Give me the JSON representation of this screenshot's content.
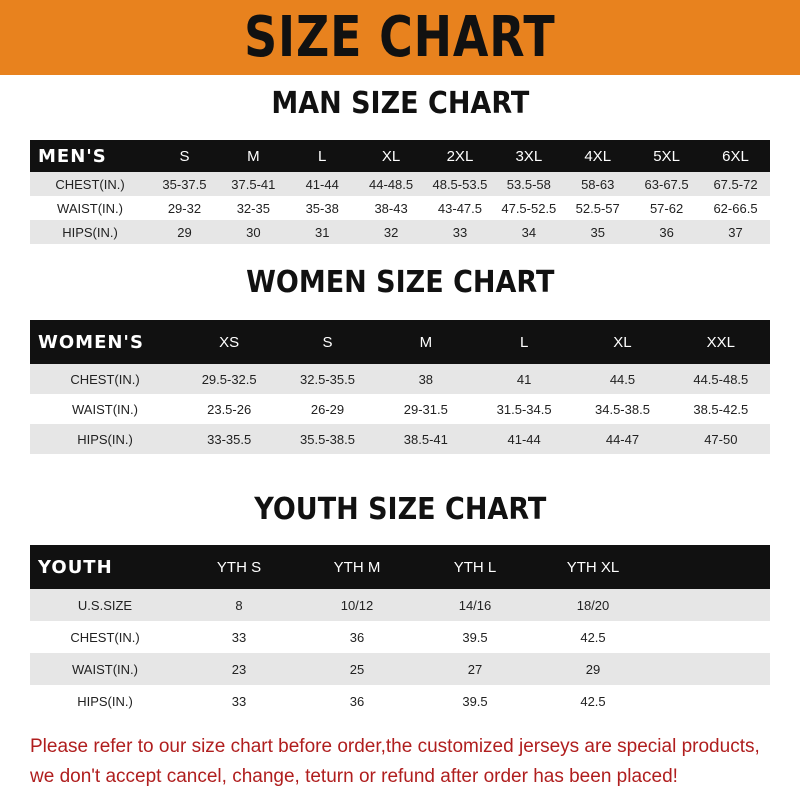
{
  "banner": "SIZE CHART",
  "men": {
    "title": "MAN SIZE CHART",
    "head": "MEN'S",
    "sizes": [
      "S",
      "M",
      "L",
      "XL",
      "2XL",
      "3XL",
      "4XL",
      "5XL",
      "6XL"
    ],
    "rows": [
      {
        "label": "CHEST(IN.)",
        "values": [
          "35-37.5",
          "37.5-41",
          "41-44",
          "44-48.5",
          "48.5-53.5",
          "53.5-58",
          "58-63",
          "63-67.5",
          "67.5-72"
        ]
      },
      {
        "label": "WAIST(IN.)",
        "values": [
          "29-32",
          "32-35",
          "35-38",
          "38-43",
          "43-47.5",
          "47.5-52.5",
          "52.5-57",
          "57-62",
          "62-66.5"
        ]
      },
      {
        "label": "HIPS(IN.)",
        "values": [
          "29",
          "30",
          "31",
          "32",
          "33",
          "34",
          "35",
          "36",
          "37"
        ]
      }
    ]
  },
  "women": {
    "title": "WOMEN SIZE CHART",
    "head": "WOMEN'S",
    "sizes": [
      "XS",
      "S",
      "M",
      "L",
      "XL",
      "XXL"
    ],
    "rows": [
      {
        "label": "CHEST(IN.)",
        "values": [
          "29.5-32.5",
          "32.5-35.5",
          "38",
          "41",
          "44.5",
          "44.5-48.5"
        ]
      },
      {
        "label": "WAIST(IN.)",
        "values": [
          "23.5-26",
          "26-29",
          "29-31.5",
          "31.5-34.5",
          "34.5-38.5",
          "38.5-42.5"
        ]
      },
      {
        "label": "HIPS(IN.)",
        "values": [
          "33-35.5",
          "35.5-38.5",
          "38.5-41",
          "41-44",
          "44-47",
          "47-50"
        ]
      }
    ]
  },
  "youth": {
    "title": "YOUTH SIZE CHART",
    "head": "YOUTH",
    "sizes": [
      "YTH S",
      "YTH M",
      "YTH L",
      "YTH XL"
    ],
    "rows": [
      {
        "label": "U.S.SIZE",
        "values": [
          "8",
          "10/12",
          "14/16",
          "18/20"
        ]
      },
      {
        "label": "CHEST(IN.)",
        "values": [
          "33",
          "36",
          "39.5",
          "42.5"
        ]
      },
      {
        "label": "WAIST(IN.)",
        "values": [
          "23",
          "25",
          "27",
          "29"
        ]
      },
      {
        "label": "HIPS(IN.)",
        "values": [
          "33",
          "36",
          "39.5",
          "42.5"
        ]
      }
    ]
  },
  "note": {
    "line1": "Please refer to our size chart before order,the customized jerseys are special products,",
    "line2": "we don't accept cancel, change, teturn or refund after order has been placed!"
  }
}
